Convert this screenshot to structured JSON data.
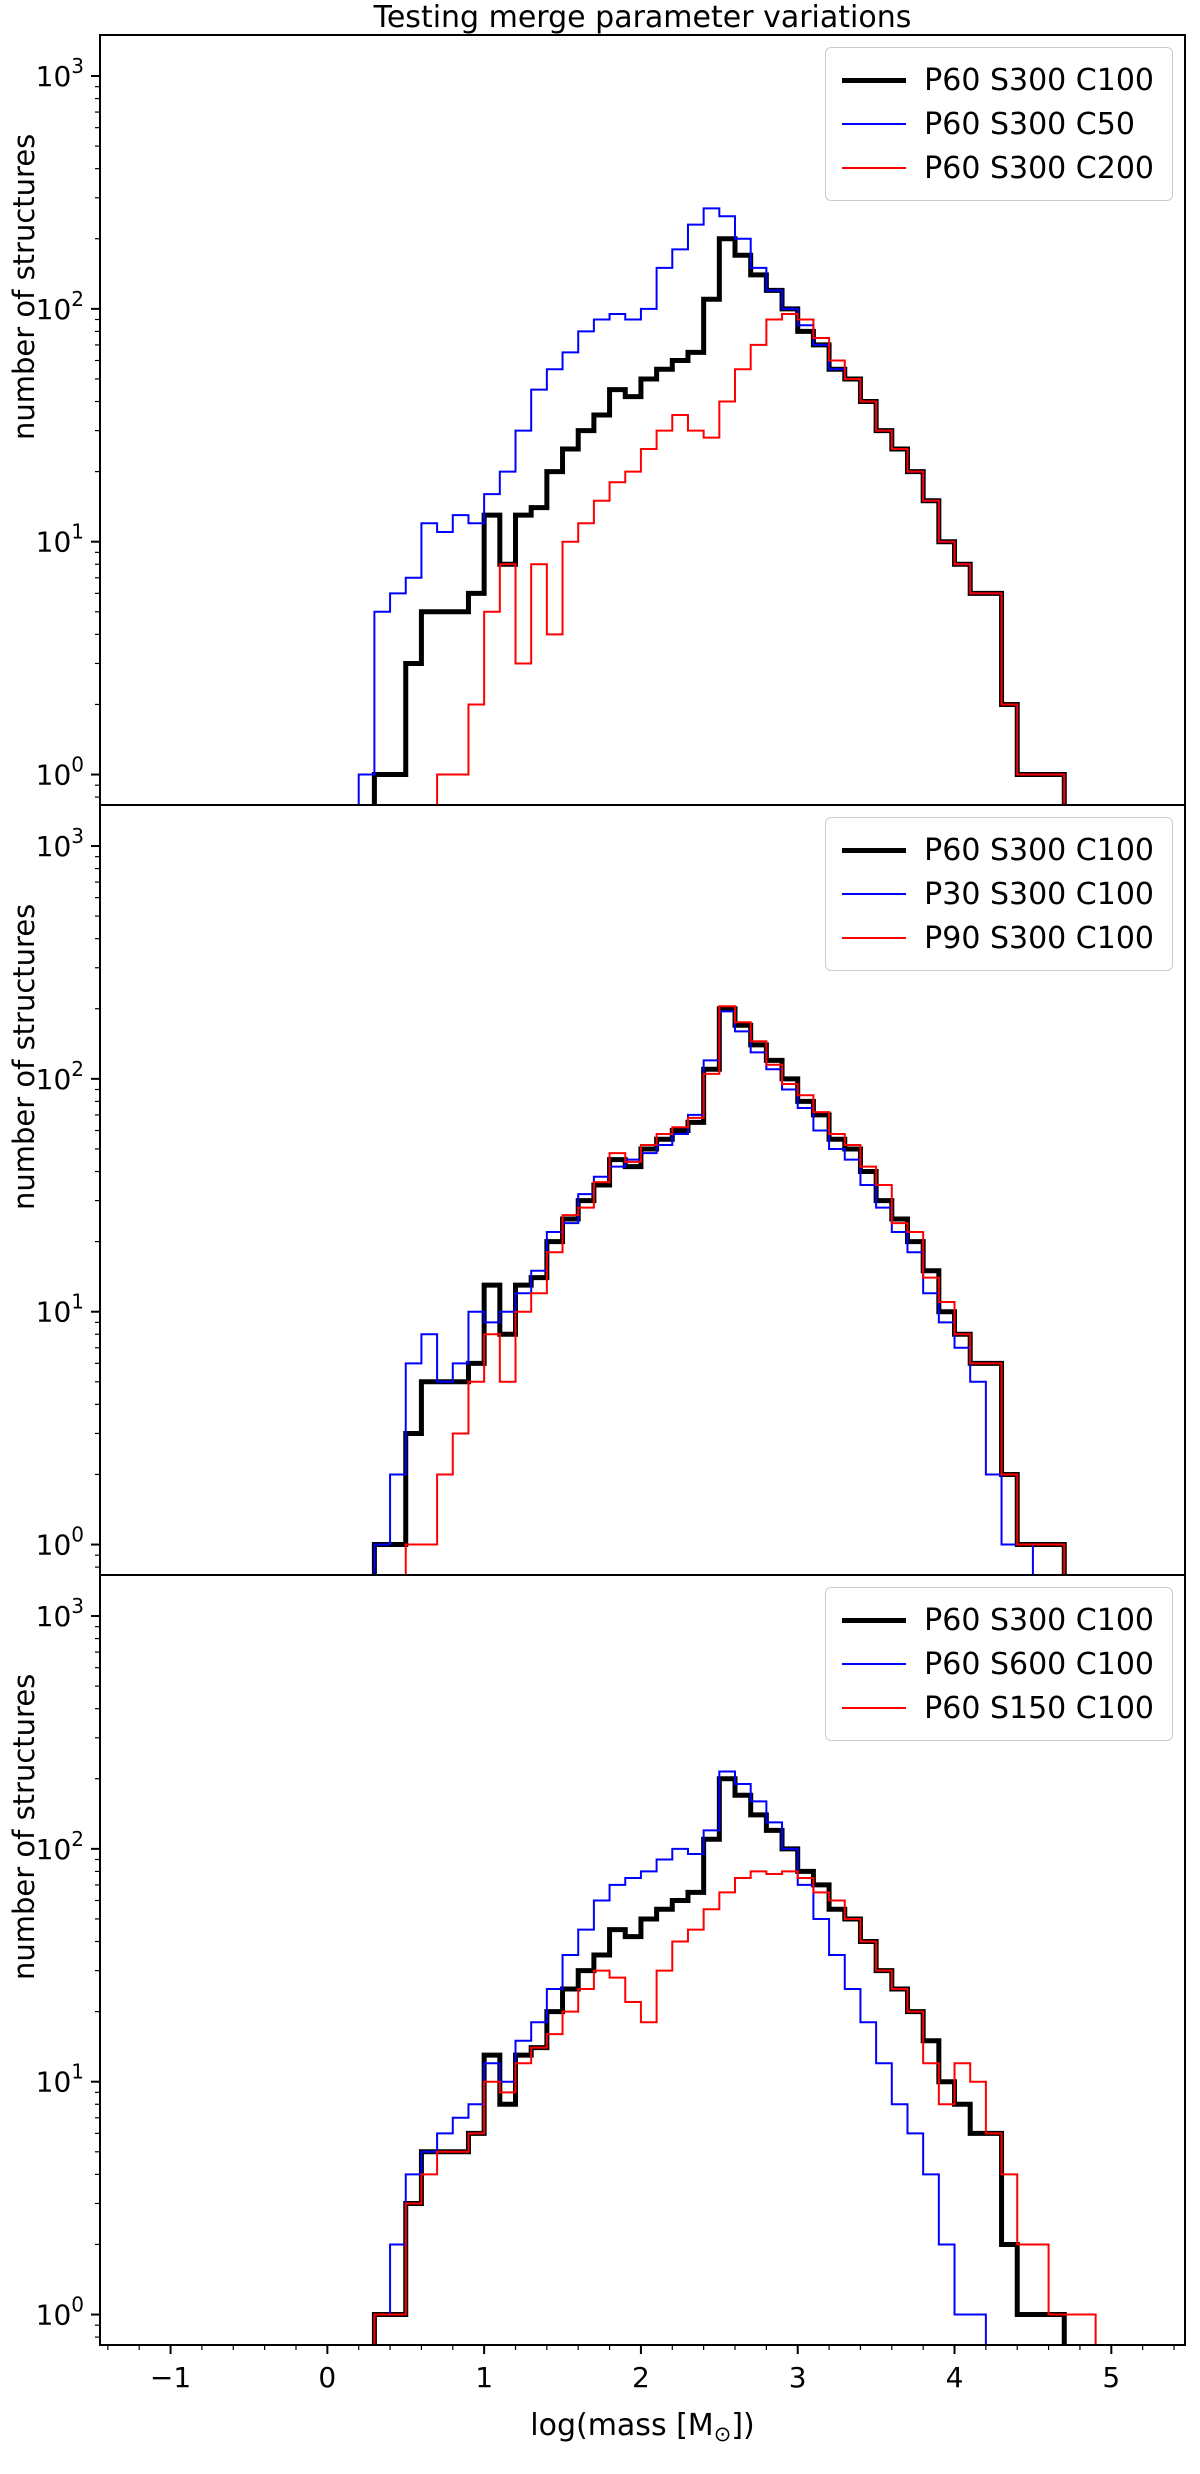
{
  "title": "Testing merge parameter variations",
  "ylabel": "number of structures",
  "xlabel": {
    "pre": "log(mass [M",
    "sub": "⊙",
    "post": "])"
  },
  "chart_data": {
    "type": "histogram-step",
    "title": "Testing merge parameter variations",
    "x_axis": {
      "label": "log(mass [M⊙])",
      "ticks": [
        -1,
        0,
        1,
        2,
        3,
        4,
        5
      ],
      "tick_labels": [
        "−1",
        "0",
        "1",
        "2",
        "3",
        "4",
        "5"
      ],
      "lim": [
        -1.45,
        5.47
      ]
    },
    "y_axis": {
      "label": "number of structures",
      "scale": "log",
      "tick_exponents": [
        0,
        1,
        2,
        3
      ],
      "lim": [
        0.74,
        1500
      ]
    },
    "grid": false,
    "legend_position": "upper right",
    "bin_width": 0.1,
    "panels": [
      {
        "name": "vary-merge-C",
        "series": [
          {
            "name": "P60 S300 C100",
            "color": "#000000",
            "linewidth": 5,
            "bin_start": 0.3,
            "counts": [
              1,
              1,
              3,
              5,
              5,
              5,
              6,
              13,
              8,
              13,
              14,
              20,
              25,
              30,
              35,
              45,
              42,
              50,
              55,
              60,
              65,
              110,
              200,
              170,
              140,
              120,
              100,
              80,
              70,
              55,
              50,
              40,
              30,
              25,
              20,
              15,
              10,
              8,
              6,
              6,
              2,
              1,
              1,
              1
            ]
          },
          {
            "name": "P60 S300 C50",
            "color": "#0000ff",
            "linewidth": 2,
            "bin_start": 0.2,
            "counts": [
              1,
              5,
              6,
              7,
              12,
              11,
              13,
              12,
              16,
              20,
              30,
              45,
              55,
              65,
              80,
              90,
              95,
              90,
              100,
              150,
              180,
              230,
              270,
              250,
              200,
              150,
              120,
              100,
              85,
              70,
              55,
              50,
              40,
              30,
              25,
              20,
              15,
              10,
              8,
              6,
              6,
              2,
              1,
              1,
              1
            ]
          },
          {
            "name": "P60 S300 C200",
            "color": "#ff0000",
            "linewidth": 2,
            "bin_start": 0.7,
            "counts": [
              1,
              1,
              2,
              5,
              8,
              3,
              8,
              4,
              10,
              12,
              15,
              18,
              20,
              25,
              30,
              35,
              30,
              28,
              40,
              55,
              70,
              90,
              95,
              90,
              75,
              60,
              50,
              40,
              30,
              25,
              20,
              15,
              10,
              8,
              6,
              6,
              2,
              1,
              1,
              1
            ]
          }
        ]
      },
      {
        "name": "vary-merge-P",
        "series": [
          {
            "name": "P60 S300 C100",
            "color": "#000000",
            "linewidth": 5,
            "bin_start": 0.3,
            "counts": [
              1,
              1,
              3,
              5,
              5,
              5,
              6,
              13,
              8,
              13,
              14,
              20,
              25,
              30,
              35,
              45,
              42,
              50,
              55,
              60,
              65,
              110,
              200,
              170,
              140,
              120,
              100,
              80,
              70,
              55,
              50,
              40,
              30,
              25,
              20,
              15,
              10,
              8,
              6,
              6,
              2,
              1,
              1,
              1
            ]
          },
          {
            "name": "P30 S300 C100",
            "color": "#0000ff",
            "linewidth": 2,
            "bin_start": 0.3,
            "counts": [
              1,
              2,
              6,
              8,
              5,
              6,
              10,
              9,
              10,
              12,
              15,
              22,
              24,
              32,
              38,
              42,
              45,
              48,
              52,
              58,
              70,
              120,
              195,
              160,
              130,
              110,
              90,
              75,
              60,
              50,
              45,
              35,
              28,
              22,
              18,
              12,
              9,
              7,
              5,
              2,
              1,
              1
            ]
          },
          {
            "name": "P90 S300 C100",
            "color": "#ff0000",
            "linewidth": 2,
            "bin_start": 0.5,
            "counts": [
              1,
              1,
              2,
              3,
              5,
              8,
              5,
              10,
              12,
              18,
              26,
              28,
              36,
              48,
              44,
              52,
              58,
              62,
              68,
              105,
              205,
              175,
              145,
              115,
              95,
              85,
              72,
              58,
              52,
              42,
              35,
              24,
              22,
              14,
              11,
              8,
              6,
              6,
              2,
              1,
              1,
              1
            ]
          }
        ]
      },
      {
        "name": "vary-merge-S",
        "series": [
          {
            "name": "P60 S300 C100",
            "color": "#000000",
            "linewidth": 5,
            "bin_start": 0.3,
            "counts": [
              1,
              1,
              3,
              5,
              5,
              5,
              6,
              13,
              8,
              13,
              14,
              20,
              25,
              30,
              35,
              45,
              42,
              50,
              55,
              60,
              65,
              110,
              200,
              170,
              140,
              120,
              100,
              80,
              70,
              55,
              50,
              40,
              30,
              25,
              20,
              15,
              10,
              8,
              6,
              6,
              2,
              1,
              1,
              1
            ]
          },
          {
            "name": "P60 S600 C100",
            "color": "#0000ff",
            "linewidth": 2,
            "bin_start": 0.3,
            "counts": [
              1,
              2,
              4,
              5,
              6,
              7,
              8,
              12,
              10,
              15,
              18,
              25,
              35,
              45,
              60,
              70,
              75,
              80,
              90,
              100,
              95,
              120,
              215,
              190,
              160,
              130,
              100,
              70,
              50,
              35,
              25,
              18,
              12,
              8,
              6,
              4,
              2,
              1,
              1
            ]
          },
          {
            "name": "P60 S150 C100",
            "color": "#ff0000",
            "linewidth": 2,
            "bin_start": 0.3,
            "counts": [
              1,
              1,
              3,
              4,
              5,
              5,
              6,
              10,
              9,
              12,
              14,
              16,
              20,
              25,
              30,
              28,
              22,
              18,
              30,
              40,
              45,
              55,
              65,
              75,
              80,
              78,
              80,
              75,
              65,
              60,
              50,
              40,
              30,
              25,
              20,
              12,
              8,
              12,
              10,
              6,
              4,
              2,
              2,
              1,
              1,
              1
            ]
          }
        ]
      }
    ]
  }
}
